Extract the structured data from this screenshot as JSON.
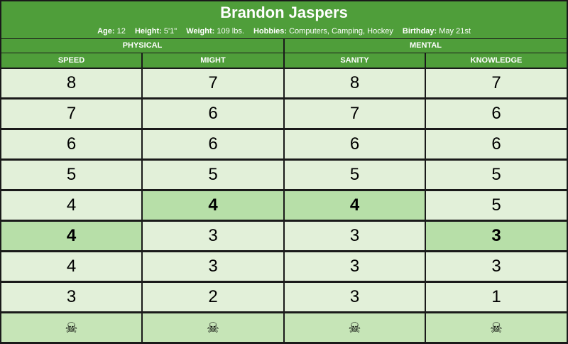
{
  "character": {
    "name": "Brandon Jaspers",
    "stats": [
      {
        "label": "Age:",
        "value": "12"
      },
      {
        "label": "Height:",
        "value": "5'1\""
      },
      {
        "label": "Weight:",
        "value": "109 lbs."
      },
      {
        "label": "Hobbies:",
        "value": "Computers, Camping, Hockey"
      },
      {
        "label": "Birthday:",
        "value": "May 21st"
      }
    ]
  },
  "groups": [
    "PHYSICAL",
    "MENTAL"
  ],
  "columns": [
    "SPEED",
    "MIGHT",
    "SANITY",
    "KNOWLEDGE"
  ],
  "rows": [
    [
      "8",
      "7",
      "8",
      "7"
    ],
    [
      "7",
      "6",
      "7",
      "6"
    ],
    [
      "6",
      "6",
      "6",
      "6"
    ],
    [
      "5",
      "5",
      "5",
      "5"
    ],
    [
      "4",
      "4",
      "4",
      "5"
    ],
    [
      "4",
      "3",
      "3",
      "3"
    ],
    [
      "4",
      "3",
      "3",
      "3"
    ],
    [
      "3",
      "2",
      "3",
      "1"
    ]
  ],
  "current_row_index": [
    5,
    4,
    4,
    5
  ],
  "death_icon": "skull-icon",
  "colors": {
    "header_green": "#4f9e3a",
    "cell_light": "#e2f0d9",
    "cell_current": "#b7dfa8",
    "skull_row": "#c6e5b7"
  }
}
